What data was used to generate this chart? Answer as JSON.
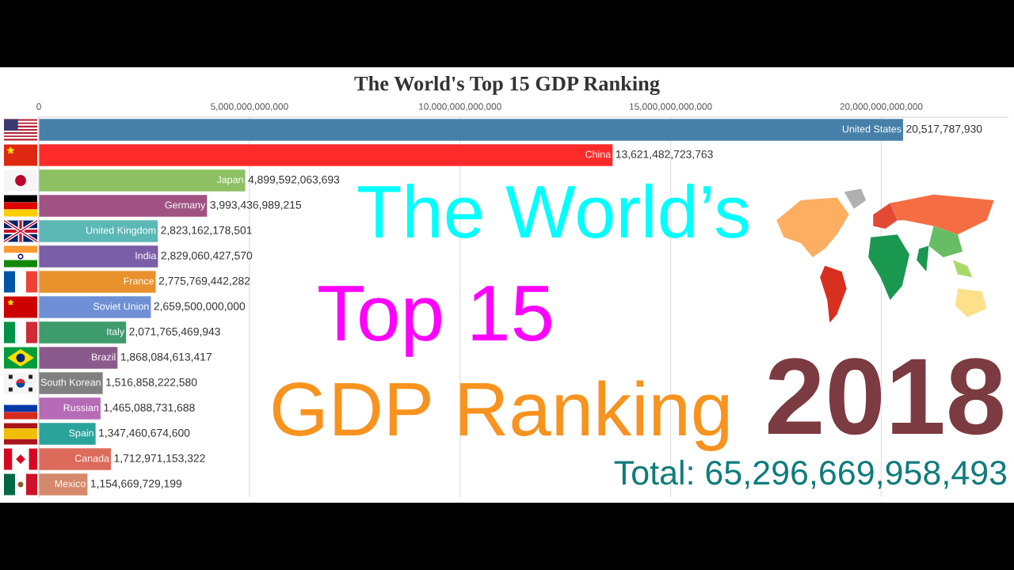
{
  "chart_data": {
    "type": "bar",
    "orientation": "horizontal",
    "title": "The World's Top 15 GDP Ranking",
    "categories": [
      "United States",
      "China",
      "Japan",
      "Germany",
      "United Kingdom",
      "India",
      "France",
      "Soviet Union",
      "Italy",
      "Brazil",
      "South Korean",
      "Russian",
      "Spain",
      "Canada",
      "Mexico"
    ],
    "values": [
      20517787930000,
      13621482723763,
      4899592063693,
      3993436989215,
      2823162178501,
      2829060427570,
      2775769442282,
      2659500000000,
      2071765469943,
      1868084613417,
      1516858222580,
      1465088731688,
      1347460674600,
      1712971153322,
      1154669729199
    ],
    "value_labels": [
      null,
      "13,621,482,723,763",
      "4,899,592,063,693",
      "3,993,436,989,215",
      "2,823,162,178,501",
      "2,829,060,427,570",
      "2,775,769,442,282",
      "2,659,500,000,000",
      "2,071,765,469,943",
      "1,868,084,613,417",
      "1,516,858,222,580",
      "1,465,088,731,688",
      "1,347,460,674,600",
      "1,712,971,153,322",
      "1,154,669,729,199"
    ],
    "colors": [
      "#4680a8",
      "#ff2a2a",
      "#8cc063",
      "#a05282",
      "#5cb8b5",
      "#7a5ea8",
      "#e8912d",
      "#6f90d6",
      "#3d9b6c",
      "#8b5a8c",
      "#808080",
      "#b56bb5",
      "#2aa39a",
      "#dc6b5b",
      "#d6896a"
    ],
    "xlim": [
      0,
      23000000000000
    ],
    "xticks": [
      0,
      {
        "value": 5000000000000,
        "label": "5,000,000,000,000"
      },
      {
        "value": 10000000000000,
        "label": "10,000,000,000,000"
      },
      {
        "value": 15000000000000,
        "label": "15,000,000,000,000"
      },
      {
        "value": 20000000000000,
        "label": "20,000,000,000,000"
      }
    ],
    "grid": "x",
    "annotations": [
      {
        "text": "20,517,787,930",
        "x": 20517787930000,
        "y": "United States"
      },
      "The World’s",
      "Top 15",
      "GDP Ranking",
      "2018",
      "Total: 65,296,669,958,493"
    ]
  }
}
